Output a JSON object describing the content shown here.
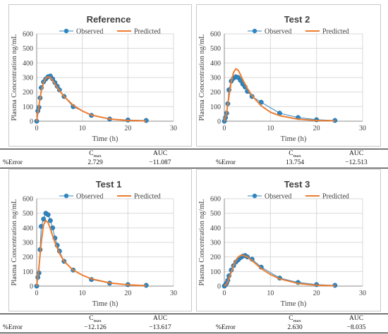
{
  "chart_data": [
    {
      "type": "line",
      "title": "Reference",
      "xlabel": "Time (h)",
      "ylabel": "Plasma Concentration ng/mL",
      "xlim": [
        0,
        30
      ],
      "ylim": [
        0,
        600
      ],
      "xticks": [
        0,
        10,
        20,
        30
      ],
      "yticks": [
        0,
        100,
        200,
        300,
        400,
        500,
        600
      ],
      "grid": true,
      "legend": "top",
      "series": [
        {
          "name": "Observed",
          "color": "#2e86c1",
          "x": [
            0,
            0.25,
            0.5,
            0.75,
            1,
            1.5,
            2,
            2.5,
            3,
            3.5,
            4,
            4.5,
            5,
            6,
            8,
            12,
            16,
            20,
            24
          ],
          "y": [
            0,
            70,
            95,
            160,
            230,
            270,
            290,
            305,
            310,
            290,
            265,
            240,
            215,
            170,
            100,
            40,
            15,
            8,
            5
          ]
        },
        {
          "name": "Predicted",
          "color": "#ed7d31",
          "x": [
            0,
            0.5,
            1,
            1.5,
            2,
            2.5,
            3,
            3.5,
            4,
            5,
            6,
            8,
            10,
            12,
            16,
            20,
            24
          ],
          "y": [
            0,
            110,
            205,
            265,
            295,
            305,
            300,
            280,
            255,
            210,
            170,
            110,
            70,
            42,
            15,
            5,
            2
          ]
        }
      ]
    },
    {
      "type": "line",
      "title": "Test 2",
      "xlabel": "Time (h)",
      "ylabel": "Plasma Concentration ng/mL",
      "xlim": [
        0,
        30
      ],
      "ylim": [
        0,
        600
      ],
      "xticks": [
        0,
        10,
        20,
        30
      ],
      "yticks": [
        0,
        100,
        200,
        300,
        400,
        500,
        600
      ],
      "grid": true,
      "legend": "top",
      "series": [
        {
          "name": "Observed",
          "color": "#2e86c1",
          "x": [
            0,
            0.25,
            0.5,
            0.75,
            1,
            1.5,
            2,
            2.5,
            3,
            3.5,
            4,
            4.5,
            5,
            6,
            8,
            12,
            16,
            20,
            24
          ],
          "y": [
            0,
            25,
            55,
            120,
            215,
            275,
            295,
            305,
            300,
            280,
            255,
            235,
            205,
            170,
            130,
            55,
            25,
            10,
            5
          ]
        },
        {
          "name": "Predicted",
          "color": "#ed7d31",
          "x": [
            0,
            0.5,
            1,
            1.5,
            2,
            2.5,
            3,
            3.5,
            4,
            5,
            6,
            8,
            10,
            12,
            16,
            20,
            24
          ],
          "y": [
            0,
            60,
            170,
            270,
            335,
            360,
            350,
            320,
            285,
            225,
            175,
            105,
            62,
            38,
            14,
            5,
            2
          ]
        }
      ]
    },
    {
      "type": "line",
      "title": "Test 1",
      "xlabel": "Time (h)",
      "ylabel": "Plasma Concentration ng/mL",
      "xlim": [
        0,
        30
      ],
      "ylim": [
        0,
        600
      ],
      "xticks": [
        0,
        10,
        20,
        30
      ],
      "yticks": [
        0,
        100,
        200,
        300,
        400,
        500,
        600
      ],
      "grid": true,
      "legend": "top",
      "series": [
        {
          "name": "Observed",
          "color": "#2e86c1",
          "x": [
            0,
            0.25,
            0.5,
            0.75,
            1,
            1.5,
            2,
            2.5,
            3,
            3.5,
            4,
            4.5,
            5,
            6,
            8,
            12,
            16,
            20,
            24
          ],
          "y": [
            0,
            60,
            90,
            250,
            410,
            460,
            500,
            490,
            450,
            400,
            330,
            280,
            240,
            170,
            110,
            45,
            20,
            10,
            5
          ]
        },
        {
          "name": "Predicted",
          "color": "#ed7d31",
          "x": [
            0,
            0.5,
            1,
            1.5,
            2,
            2.5,
            3,
            3.5,
            4,
            5,
            6,
            8,
            10,
            12,
            16,
            20,
            24
          ],
          "y": [
            0,
            130,
            300,
            420,
            450,
            435,
            395,
            345,
            300,
            225,
            170,
            110,
            75,
            50,
            22,
            8,
            3
          ]
        }
      ]
    },
    {
      "type": "line",
      "title": "Test 3",
      "xlabel": "Time (h)",
      "ylabel": "Plasma Concentration ng/mL",
      "xlim": [
        0,
        30
      ],
      "ylim": [
        0,
        600
      ],
      "xticks": [
        0,
        10,
        20,
        30
      ],
      "yticks": [
        0,
        100,
        200,
        300,
        400,
        500,
        600
      ],
      "grid": true,
      "legend": "top",
      "series": [
        {
          "name": "Observed",
          "color": "#2e86c1",
          "x": [
            0,
            0.25,
            0.5,
            0.75,
            1,
            1.5,
            2,
            2.5,
            3,
            3.5,
            4,
            4.5,
            5,
            6,
            8,
            12,
            16,
            20,
            24
          ],
          "y": [
            0,
            10,
            20,
            40,
            70,
            110,
            140,
            165,
            180,
            195,
            205,
            210,
            200,
            185,
            130,
            55,
            25,
            10,
            5
          ]
        },
        {
          "name": "Predicted",
          "color": "#ed7d31",
          "x": [
            0,
            0.5,
            1,
            1.5,
            2,
            2.5,
            3,
            3.5,
            4,
            5,
            6,
            8,
            10,
            12,
            16,
            20,
            24
          ],
          "y": [
            0,
            15,
            50,
            95,
            140,
            175,
            200,
            210,
            212,
            200,
            175,
            120,
            80,
            50,
            18,
            6,
            2
          ]
        }
      ]
    }
  ],
  "tables": [
    {
      "header": [
        "C",
        "max",
        "AUC"
      ],
      "row_label": "%Error",
      "cmax": "2.729",
      "auc": "−11.087"
    },
    {
      "header": [
        "C",
        "max",
        "AUC"
      ],
      "row_label": "%Error",
      "cmax": "13.754",
      "auc": "−12.513"
    },
    {
      "header": [
        "C",
        "max",
        "AUC"
      ],
      "row_label": "%Error",
      "cmax": "−12.126",
      "auc": "−13.617"
    },
    {
      "header": [
        "C",
        "max",
        "AUC"
      ],
      "row_label": "%Error",
      "cmax": "2.630",
      "auc": "−8.035"
    }
  ]
}
